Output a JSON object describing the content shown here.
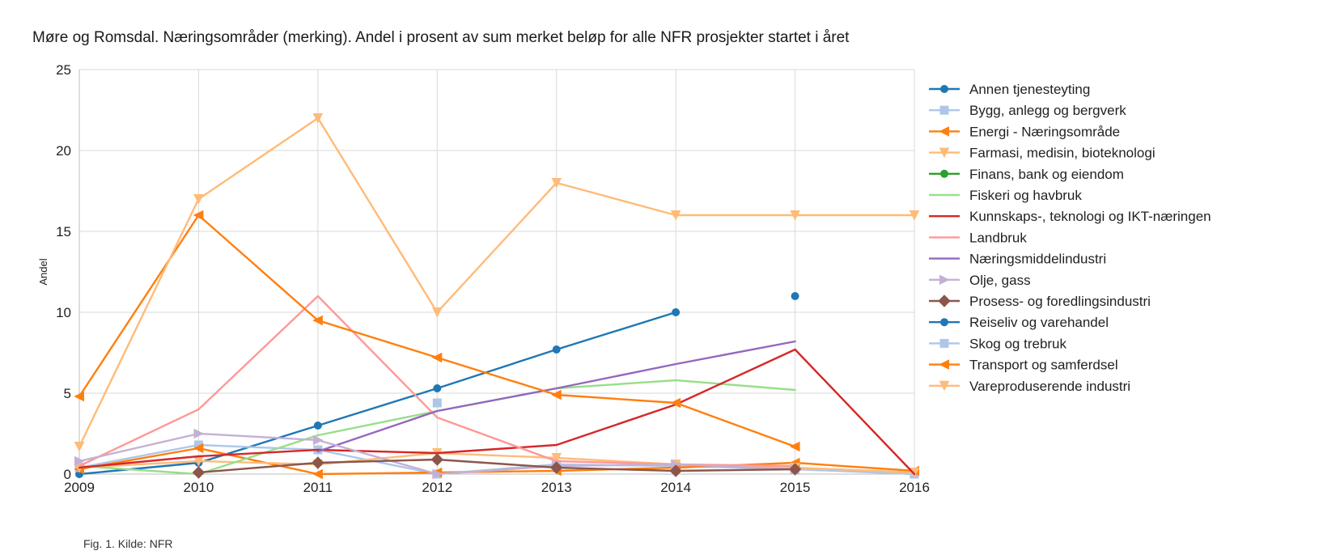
{
  "chart_data": {
    "type": "line",
    "title": "Møre og Romsdal. Næringsområder (merking). Andel i prosent av sum merket beløp for alle NFR prosjekter startet i året",
    "xlabel": "",
    "ylabel": "Andel",
    "x": [
      2009,
      2010,
      2011,
      2012,
      2013,
      2014,
      2015,
      2016
    ],
    "xlim": [
      2009,
      2016
    ],
    "ylim": [
      0,
      25
    ],
    "yticks": [
      0,
      5,
      10,
      15,
      20,
      25
    ],
    "grid": true,
    "legend_position": "right",
    "series": [
      {
        "name": "Annen tjenesteyting",
        "color": "#1f77b4",
        "marker": "circle",
        "values": [
          0,
          0.7,
          3.0,
          5.3,
          7.7,
          10,
          null,
          null
        ]
      },
      {
        "name": "Bygg, anlegg og bergverk",
        "color": "#aec7e8",
        "marker": "square",
        "values": [
          0.4,
          1.8,
          1.5,
          0,
          0.6,
          0.5,
          0.3,
          0
        ]
      },
      {
        "name": "Energi - Næringsområde",
        "color": "#ff7f0e",
        "marker": "triangle-left",
        "values": [
          0.3,
          1.6,
          0,
          0.1,
          0.2,
          0.4,
          0.7,
          0.2
        ]
      },
      {
        "name": "Farmasi, medisin, bioteknologi",
        "color": "#ffbb78",
        "marker": "triangle-down",
        "values": [
          0.4,
          0.8,
          0.6,
          1.3,
          1.0,
          0.6,
          0.4,
          0.1
        ]
      },
      {
        "name": "Finans, bank og eiendom",
        "color": "#2ca02c",
        "marker": "circle",
        "values": [
          null,
          null,
          null,
          null,
          null,
          null,
          null,
          null
        ]
      },
      {
        "name": "Fiskeri og havbruk",
        "color": "#98df8a",
        "marker": "none",
        "values": [
          0.5,
          0,
          2.4,
          3.9,
          5.3,
          5.8,
          5.2,
          null
        ]
      },
      {
        "name": "Kunnskaps-, teknologi og IKT-næringen",
        "color": "#d62728",
        "marker": "none",
        "values": [
          0.4,
          1.1,
          1.5,
          1.3,
          1.8,
          4.3,
          7.7,
          0
        ]
      },
      {
        "name": "Landbruk",
        "color": "#ff9896",
        "marker": "none",
        "values": [
          0.5,
          4.0,
          11.0,
          3.5,
          0.8,
          0.6,
          0.5,
          null
        ]
      },
      {
        "name": "Næringsmiddelindustri",
        "color": "#9467bd",
        "marker": "none",
        "values": [
          null,
          null,
          1.4,
          3.9,
          5.3,
          6.8,
          8.2,
          null
        ]
      },
      {
        "name": "Olje, gass",
        "color": "#c5b0d5",
        "marker": "triangle-right",
        "values": [
          0.8,
          2.5,
          2.1,
          0,
          0.5,
          0.6,
          0.3,
          null
        ]
      },
      {
        "name": "Prosess- og foredlingsindustri",
        "color": "#8c564b",
        "marker": "diamond",
        "values": [
          null,
          0.1,
          0.7,
          0.9,
          0.4,
          0.2,
          0.3,
          null
        ]
      },
      {
        "name": "Reiseliv og varehandel",
        "color": "#1f77b4",
        "marker": "circle",
        "values": [
          null,
          null,
          null,
          null,
          null,
          null,
          11,
          null
        ]
      },
      {
        "name": "Skog og trebruk",
        "color": "#aec7e8",
        "marker": "square",
        "values": [
          null,
          null,
          null,
          4.4,
          null,
          null,
          null,
          null
        ]
      },
      {
        "name": "Transport og samferdsel",
        "color": "#ff7f0e",
        "marker": "triangle-left",
        "values": [
          4.8,
          16,
          9.5,
          7.2,
          4.9,
          4.4,
          1.7,
          null
        ]
      },
      {
        "name": "Vareproduserende industri",
        "color": "#ffbb78",
        "marker": "triangle-down",
        "values": [
          1.7,
          17,
          22,
          10,
          18,
          16,
          16,
          16
        ]
      }
    ]
  },
  "caption": "Fig. 1. Kilde: NFR",
  "style": {
    "grid_color": "#d9d9d9",
    "axis_color": "#bdbdbd",
    "background": "#ffffff"
  }
}
